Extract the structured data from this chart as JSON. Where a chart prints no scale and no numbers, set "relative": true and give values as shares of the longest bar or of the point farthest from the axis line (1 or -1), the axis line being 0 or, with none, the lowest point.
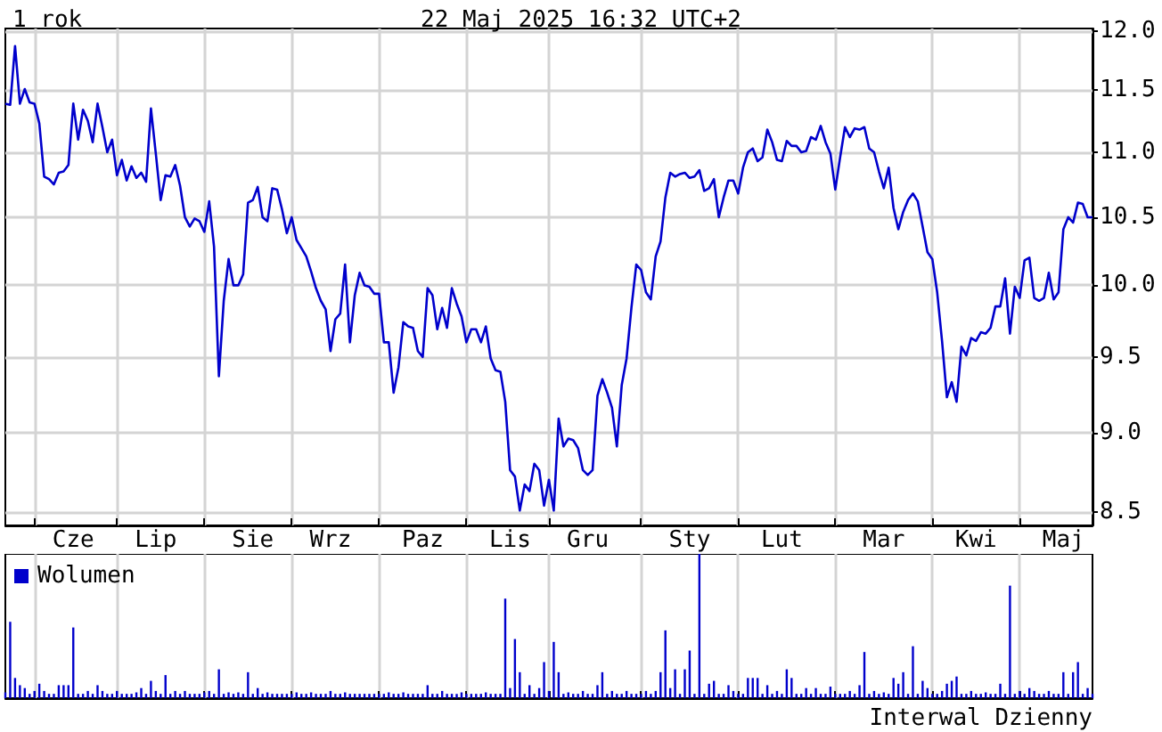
{
  "chart_data": [
    {
      "type": "line",
      "title": "1 rok",
      "subtitle": "22 Maj 2025 16:32 UTC+2",
      "color": "#0000cc",
      "marker": "none",
      "log": true,
      "grid": true,
      "categories": [
        null,
        null,
        null,
        null,
        null,
        null,
        null,
        null,
        null,
        null,
        null,
        null,
        null,
        null,
        "Cze",
        null,
        null,
        null,
        null,
        null,
        null,
        null,
        null,
        null,
        null,
        null,
        null,
        null,
        null,
        null,
        null,
        "Lip",
        null,
        null,
        null,
        null,
        null,
        null,
        null,
        null,
        null,
        null,
        null,
        null,
        null,
        null,
        null,
        null,
        null,
        null,
        null,
        "Sie",
        null,
        null,
        null,
        null,
        null,
        null,
        null,
        null,
        null,
        null,
        null,
        null,
        null,
        null,
        null,
        "Wrz",
        null,
        null,
        null,
        null,
        null,
        null,
        null,
        null,
        null,
        null,
        null,
        null,
        null,
        null,
        null,
        null,
        null,
        null,
        "Paz",
        null,
        null,
        null,
        null,
        null,
        null,
        null,
        null,
        null,
        null,
        null,
        null,
        null,
        null,
        null,
        null,
        null,
        "Lis",
        null,
        null,
        null,
        null,
        null,
        null,
        null,
        null,
        null,
        null,
        null,
        null,
        null,
        null,
        null,
        "Gru",
        null,
        null,
        null,
        null,
        null,
        null,
        null,
        null,
        null,
        null,
        null,
        null,
        null,
        null,
        null,
        null,
        null,
        null,
        null,
        null,
        "Sty",
        null,
        null,
        null,
        null,
        null,
        null,
        null,
        null,
        null,
        null,
        null,
        null,
        null,
        null,
        null,
        null,
        null,
        null,
        "Lut",
        null,
        null,
        null,
        null,
        null,
        null,
        null,
        null,
        null,
        null,
        null,
        null,
        null,
        null,
        null,
        null,
        null,
        null,
        null,
        null,
        "Mar",
        null,
        null,
        null,
        null,
        null,
        null,
        null,
        null,
        null,
        null,
        null,
        null,
        null,
        null,
        null,
        null,
        null,
        null,
        "Kwi",
        null,
        null,
        null,
        null,
        null,
        null,
        null,
        null,
        null,
        null,
        null,
        null,
        null,
        null,
        null,
        null,
        null,
        "Maj",
        null,
        null,
        null,
        null,
        null,
        null
      ],
      "values": [
        11.39,
        11.38,
        11.87,
        11.39,
        11.51,
        11.4,
        11.39,
        11.23,
        10.81,
        10.79,
        10.75,
        10.84,
        10.85,
        10.9,
        11.39,
        11.1,
        11.34,
        11.25,
        11.08,
        11.39,
        11.2,
        11.0,
        11.1,
        10.82,
        10.94,
        10.78,
        10.89,
        10.8,
        10.84,
        10.77,
        11.35,
        10.99,
        10.63,
        10.82,
        10.81,
        10.9,
        10.74,
        10.5,
        10.43,
        10.49,
        10.47,
        10.39,
        10.62,
        10.28,
        9.37,
        9.89,
        10.19,
        10.0,
        10.0,
        10.08,
        10.61,
        10.63,
        10.73,
        10.5,
        10.47,
        10.72,
        10.71,
        10.56,
        10.38,
        10.5,
        10.33,
        10.27,
        10.21,
        10.1,
        9.98,
        9.89,
        9.83,
        9.54,
        9.76,
        9.8,
        10.15,
        9.6,
        9.93,
        10.09,
        10.0,
        9.99,
        9.94,
        9.94,
        9.6,
        9.6,
        9.26,
        9.43,
        9.74,
        9.71,
        9.7,
        9.54,
        9.5,
        9.98,
        9.93,
        9.69,
        9.84,
        9.7,
        9.98,
        9.87,
        9.78,
        9.6,
        9.69,
        9.69,
        9.6,
        9.71,
        9.49,
        9.41,
        9.4,
        9.2,
        8.76,
        8.72,
        8.51,
        8.67,
        8.63,
        8.8,
        8.76,
        8.54,
        8.7,
        8.51,
        9.09,
        8.91,
        8.96,
        8.95,
        8.9,
        8.76,
        8.73,
        8.76,
        9.24,
        9.35,
        9.26,
        9.16,
        8.91,
        9.31,
        9.49,
        9.84,
        10.15,
        10.11,
        9.95,
        9.9,
        10.21,
        10.32,
        10.65,
        10.84,
        10.81,
        10.83,
        10.84,
        10.8,
        10.81,
        10.86,
        10.7,
        10.72,
        10.79,
        10.5,
        10.65,
        10.78,
        10.78,
        10.68,
        10.88,
        11.0,
        11.03,
        10.93,
        10.96,
        11.18,
        11.08,
        10.94,
        10.93,
        11.09,
        11.05,
        11.05,
        11.0,
        11.01,
        11.12,
        11.1,
        11.21,
        11.08,
        10.99,
        10.71,
        10.96,
        11.2,
        11.12,
        11.19,
        11.18,
        11.2,
        11.03,
        11.0,
        10.85,
        10.72,
        10.88,
        10.57,
        10.41,
        10.54,
        10.63,
        10.68,
        10.62,
        10.43,
        10.24,
        10.19,
        9.95,
        9.61,
        9.23,
        9.33,
        9.2,
        9.57,
        9.51,
        9.63,
        9.61,
        9.67,
        9.66,
        9.7,
        9.85,
        9.85,
        10.05,
        9.66,
        9.99,
        9.91,
        10.18,
        10.2,
        9.91,
        9.89,
        9.91,
        10.09,
        9.9,
        9.95,
        10.41,
        10.5,
        10.46,
        10.61,
        10.6,
        10.5,
        10.5
      ],
      "ylim": [
        8.42,
        12.02
      ],
      "yticks": [
        {
          "value": 8.5,
          "label": "8.5"
        },
        {
          "value": 9,
          "label": "9.0"
        },
        {
          "value": 9.5,
          "label": "9.5"
        },
        {
          "value": 10,
          "label": "10.0"
        },
        {
          "value": 10.5,
          "label": "10.5"
        },
        {
          "value": 11,
          "label": "11.0"
        },
        {
          "value": 11.5,
          "label": "11.5"
        },
        {
          "value": 12,
          "label": "12.0"
        }
      ]
    },
    {
      "type": "bar",
      "relative": true,
      "legend": "top left",
      "grid": "x",
      "tick_labels": false,
      "annotations": [
        "Interwal Dzienny"
      ],
      "categories": [
        null,
        null,
        null,
        null,
        null,
        null,
        null,
        null,
        null,
        null,
        null,
        null,
        null,
        null,
        null,
        null,
        null,
        null,
        null,
        null,
        null,
        null,
        null,
        null,
        null,
        null,
        null,
        null,
        null,
        null,
        null,
        null,
        null,
        null,
        null,
        null,
        null,
        null,
        null,
        null,
        null,
        null,
        null,
        null,
        null,
        null,
        null,
        null,
        null,
        null,
        null,
        null,
        null,
        null,
        null,
        null,
        null,
        null,
        null,
        null,
        null,
        null,
        null,
        null,
        null,
        null,
        null,
        null,
        null,
        null,
        null,
        null,
        null,
        null,
        null,
        null,
        null,
        null,
        null,
        null,
        null,
        null,
        null,
        null,
        null,
        null,
        null,
        null,
        null,
        null,
        null,
        null,
        null,
        null,
        null,
        null,
        null,
        null,
        null,
        null,
        null,
        null,
        null,
        null,
        null,
        null,
        null,
        null,
        null,
        null,
        null,
        null,
        null,
        null,
        null,
        null,
        null,
        null,
        null,
        null,
        null,
        null,
        null,
        null,
        null,
        null,
        null,
        null,
        null,
        null,
        null,
        null,
        null,
        null,
        null,
        null,
        null,
        null,
        null,
        null,
        null,
        null,
        null,
        null,
        null,
        null,
        null,
        null,
        null,
        null,
        null,
        null,
        null,
        null,
        null,
        null,
        null,
        null,
        null,
        null,
        null,
        null,
        null,
        null,
        null,
        null,
        null,
        null,
        null,
        null,
        null,
        null,
        null,
        null,
        null,
        null,
        null,
        null,
        null,
        null,
        null,
        null,
        null,
        null,
        null,
        null,
        null,
        null,
        null,
        null,
        null,
        null,
        null,
        null,
        null,
        null,
        null,
        null,
        null,
        null,
        null,
        null,
        null,
        null,
        null,
        null,
        null,
        null,
        null,
        null,
        null,
        null,
        null,
        null,
        null,
        null,
        null,
        null,
        null,
        null,
        null,
        null,
        null,
        null,
        null
      ],
      "series": [
        {
          "name": "Wolumen",
          "color": "#0000cc",
          "values": [
            0.04,
            0.53,
            0.14,
            0.09,
            0.07,
            0.03,
            0.05,
            0.1,
            0.05,
            0.03,
            0.03,
            0.09,
            0.09,
            0.09,
            0.49,
            0.03,
            0.03,
            0.05,
            0.03,
            0.09,
            0.05,
            0.03,
            0.03,
            0.05,
            0.03,
            0.03,
            0.03,
            0.04,
            0.07,
            0.03,
            0.12,
            0.05,
            0.03,
            0.16,
            0.03,
            0.05,
            0.03,
            0.05,
            0.03,
            0.03,
            0.03,
            0.04,
            0.05,
            0.03,
            0.2,
            0.03,
            0.04,
            0.03,
            0.04,
            0.03,
            0.18,
            0.03,
            0.07,
            0.03,
            0.04,
            0.03,
            0.03,
            0.03,
            0.03,
            0.03,
            0.04,
            0.03,
            0.03,
            0.04,
            0.03,
            0.03,
            0.03,
            0.05,
            0.03,
            0.03,
            0.04,
            0.03,
            0.03,
            0.03,
            0.03,
            0.03,
            0.03,
            0.03,
            0.03,
            0.04,
            0.03,
            0.03,
            0.04,
            0.03,
            0.03,
            0.03,
            0.03,
            0.09,
            0.03,
            0.03,
            0.05,
            0.03,
            0.03,
            0.03,
            0.04,
            0.03,
            0.03,
            0.03,
            0.03,
            0.04,
            0.03,
            0.03,
            0.03,
            0.69,
            0.07,
            0.41,
            0.18,
            0.03,
            0.09,
            0.03,
            0.07,
            0.25,
            0.05,
            0.39,
            0.18,
            0.03,
            0.04,
            0.03,
            0.03,
            0.05,
            0.03,
            0.03,
            0.09,
            0.18,
            0.03,
            0.05,
            0.03,
            0.03,
            0.05,
            0.03,
            0.03,
            0.03,
            0.05,
            0.03,
            0.05,
            0.18,
            0.47,
            0.07,
            0.2,
            0.03,
            0.2,
            0.33,
            0.03,
            1,
            0.03,
            0.1,
            0.12,
            0.03,
            0.03,
            0.09,
            0.05,
            0.03,
            0.03,
            0.14,
            0.14,
            0.14,
            0.03,
            0.09,
            0.03,
            0.05,
            0.03,
            0.2,
            0.14,
            0.03,
            0.03,
            0.07,
            0.03,
            0.07,
            0.03,
            0.03,
            0.08,
            0.03,
            0.03,
            0.03,
            0.05,
            0.03,
            0.09,
            0.32,
            0.03,
            0.05,
            0.03,
            0.04,
            0.03,
            0.14,
            0.1,
            0.18,
            0.03,
            0.36,
            0.03,
            0.12,
            0.07,
            0.03,
            0.03,
            0.05,
            0.1,
            0.12,
            0.15,
            0.03,
            0.03,
            0.05,
            0.03,
            0.03,
            0.04,
            0.03,
            0.03,
            0.1,
            0.03,
            0.78,
            0.03,
            0.05,
            0.03,
            0.07,
            0.05,
            0.03,
            0.03,
            0.05,
            0.03,
            0.03,
            0.18,
            0.03,
            0.18,
            0.25,
            0.03,
            0.07,
            0.03
          ]
        }
      ]
    }
  ]
}
